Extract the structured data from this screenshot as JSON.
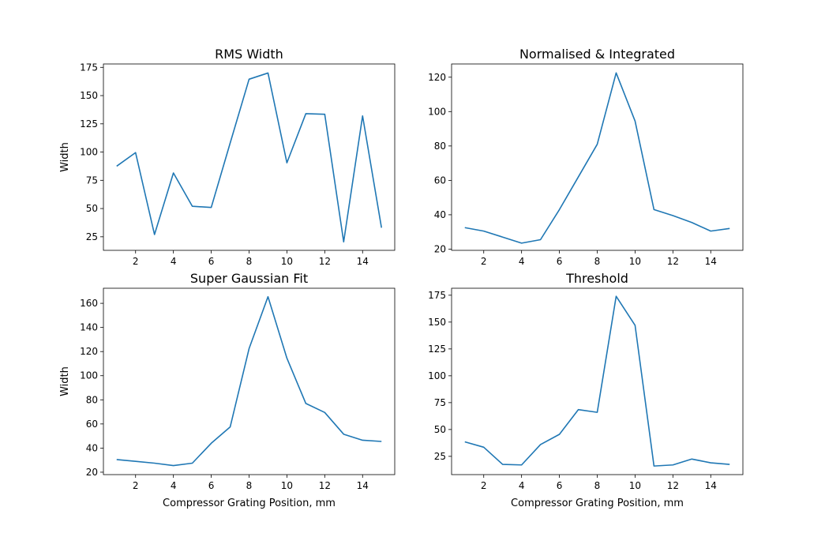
{
  "colors": {
    "line": "#1f77b4",
    "axes": "#000000",
    "background": "#ffffff"
  },
  "chart_data": [
    {
      "type": "line",
      "title": "RMS Width",
      "xlabel": "",
      "ylabel": "Width",
      "grid": false,
      "xlim": [
        0.3,
        15.7
      ],
      "ylim": [
        13,
        178
      ],
      "xticks": [
        2,
        4,
        6,
        8,
        10,
        12,
        14
      ],
      "yticks": [
        25,
        50,
        75,
        100,
        125,
        150,
        175
      ],
      "x": [
        1,
        2,
        3,
        4,
        5,
        6,
        7,
        8,
        9,
        10,
        11,
        12,
        13,
        14,
        15
      ],
      "series": [
        {
          "values": [
            87.5,
            99.5,
            27,
            81.5,
            52,
            51,
            108,
            164.5,
            170,
            90.5,
            134,
            133.5,
            20.5,
            132,
            33
          ]
        }
      ]
    },
    {
      "type": "line",
      "title": "Normalised & Integrated",
      "xlabel": "",
      "ylabel": "",
      "grid": false,
      "xlim": [
        0.3,
        15.7
      ],
      "ylim": [
        19.3,
        127.7
      ],
      "xticks": [
        2,
        4,
        6,
        8,
        10,
        12,
        14
      ],
      "yticks": [
        20,
        40,
        60,
        80,
        100,
        120
      ],
      "x": [
        1,
        2,
        3,
        4,
        5,
        6,
        7,
        8,
        9,
        10,
        11,
        12,
        13,
        14,
        15
      ],
      "series": [
        {
          "values": [
            32.5,
            30.5,
            27,
            23.5,
            25.5,
            43,
            62,
            81,
            122.5,
            94.5,
            43,
            39.5,
            35.5,
            30.5,
            32
          ]
        }
      ]
    },
    {
      "type": "line",
      "title": "Super Gaussian Fit",
      "xlabel": "Compressor Grating Position, mm",
      "ylabel": "Width",
      "grid": false,
      "xlim": [
        0.3,
        15.7
      ],
      "ylim": [
        18,
        172.5
      ],
      "xticks": [
        2,
        4,
        6,
        8,
        10,
        12,
        14
      ],
      "yticks": [
        20,
        40,
        60,
        80,
        100,
        120,
        140,
        160
      ],
      "x": [
        1,
        2,
        3,
        4,
        5,
        6,
        7,
        8,
        9,
        10,
        11,
        12,
        13,
        14,
        15
      ],
      "series": [
        {
          "values": [
            30.5,
            29,
            27.5,
            25.5,
            27.5,
            44,
            57.5,
            122.5,
            165.5,
            114.5,
            77,
            69.5,
            51.5,
            46.5,
            45.5
          ]
        }
      ]
    },
    {
      "type": "line",
      "title": "Threshold",
      "xlabel": "Compressor Grating Position, mm",
      "ylabel": "",
      "grid": false,
      "xlim": [
        0.3,
        15.7
      ],
      "ylim": [
        8,
        181.5
      ],
      "xticks": [
        2,
        4,
        6,
        8,
        10,
        12,
        14
      ],
      "yticks": [
        25,
        50,
        75,
        100,
        125,
        150,
        175
      ],
      "x": [
        1,
        2,
        3,
        4,
        5,
        6,
        7,
        8,
        9,
        10,
        11,
        12,
        13,
        14,
        15
      ],
      "series": [
        {
          "values": [
            38.5,
            33.5,
            17.5,
            17,
            36,
            45.5,
            68.5,
            66,
            174,
            147,
            16,
            17,
            22.5,
            19,
            17.5
          ]
        }
      ]
    }
  ]
}
